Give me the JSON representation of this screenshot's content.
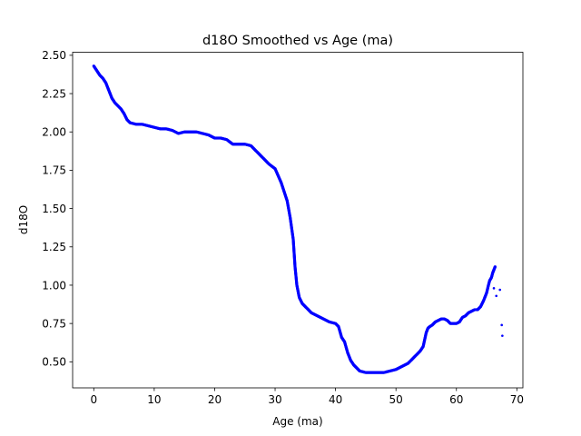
{
  "chart_data": {
    "type": "scatter",
    "title": "d18O Smoothed vs Age (ma)",
    "xlabel": "Age (ma)",
    "ylabel": "d18O",
    "xlim": [
      -3.5,
      71
    ],
    "ylim": [
      0.33,
      2.52
    ],
    "xticks": [
      0,
      10,
      20,
      30,
      40,
      50,
      60,
      70
    ],
    "yticks": [
      0.5,
      0.75,
      1.0,
      1.25,
      1.5,
      1.75,
      2.0,
      2.25,
      2.5
    ],
    "ytick_labels": [
      "0.50",
      "0.75",
      "1.00",
      "1.25",
      "1.50",
      "1.75",
      "2.00",
      "2.25",
      "2.50"
    ],
    "grid": false,
    "marker_color": "#0000ff",
    "series": [
      {
        "x": [
          0,
          0.5,
          1,
          1.5,
          2,
          2.5,
          3,
          3.5,
          4,
          4.5,
          5,
          5.5,
          6,
          7,
          8,
          9,
          10,
          11,
          12,
          13,
          14,
          15,
          16,
          17,
          18,
          19,
          20,
          21,
          22,
          23,
          24,
          25,
          26,
          27,
          28,
          29,
          30,
          31,
          32,
          32.5,
          33,
          33.3,
          33.6,
          34,
          34.5,
          35,
          36,
          37,
          38,
          39,
          40,
          40.5,
          41,
          41.5,
          42,
          42.5,
          43,
          43.5,
          44,
          45,
          46,
          47,
          48,
          49,
          50,
          51,
          52,
          53,
          54,
          54.5,
          55,
          55.3,
          55.6,
          56,
          56.5,
          57,
          57.5,
          58,
          58.5,
          59,
          59.5,
          60,
          60.5,
          61,
          61.5,
          62,
          62.5,
          63,
          63.5,
          64,
          64.5,
          65,
          65.3,
          65.5,
          65.8,
          66,
          66.2,
          66.4
        ],
        "y": [
          2.43,
          2.4,
          2.37,
          2.35,
          2.32,
          2.27,
          2.22,
          2.19,
          2.17,
          2.15,
          2.12,
          2.08,
          2.06,
          2.05,
          2.05,
          2.04,
          2.03,
          2.02,
          2.02,
          2.01,
          1.99,
          2.0,
          2.0,
          2.0,
          1.99,
          1.98,
          1.96,
          1.96,
          1.95,
          1.92,
          1.92,
          1.92,
          1.91,
          1.87,
          1.83,
          1.79,
          1.76,
          1.67,
          1.55,
          1.44,
          1.3,
          1.12,
          1.0,
          0.92,
          0.88,
          0.86,
          0.82,
          0.8,
          0.78,
          0.76,
          0.75,
          0.73,
          0.66,
          0.63,
          0.56,
          0.51,
          0.48,
          0.46,
          0.44,
          0.43,
          0.43,
          0.43,
          0.43,
          0.44,
          0.45,
          0.47,
          0.49,
          0.53,
          0.57,
          0.6,
          0.69,
          0.72,
          0.73,
          0.74,
          0.76,
          0.77,
          0.78,
          0.78,
          0.77,
          0.75,
          0.75,
          0.75,
          0.76,
          0.79,
          0.8,
          0.82,
          0.83,
          0.84,
          0.84,
          0.86,
          0.9,
          0.95,
          1.0,
          1.03,
          1.05,
          1.08,
          1.1,
          1.12
        ]
      },
      {
        "x": [
          66.2,
          66.6,
          67.2,
          67.5,
          67.6
        ],
        "y": [
          0.98,
          0.93,
          0.97,
          0.74,
          0.67
        ]
      }
    ]
  }
}
